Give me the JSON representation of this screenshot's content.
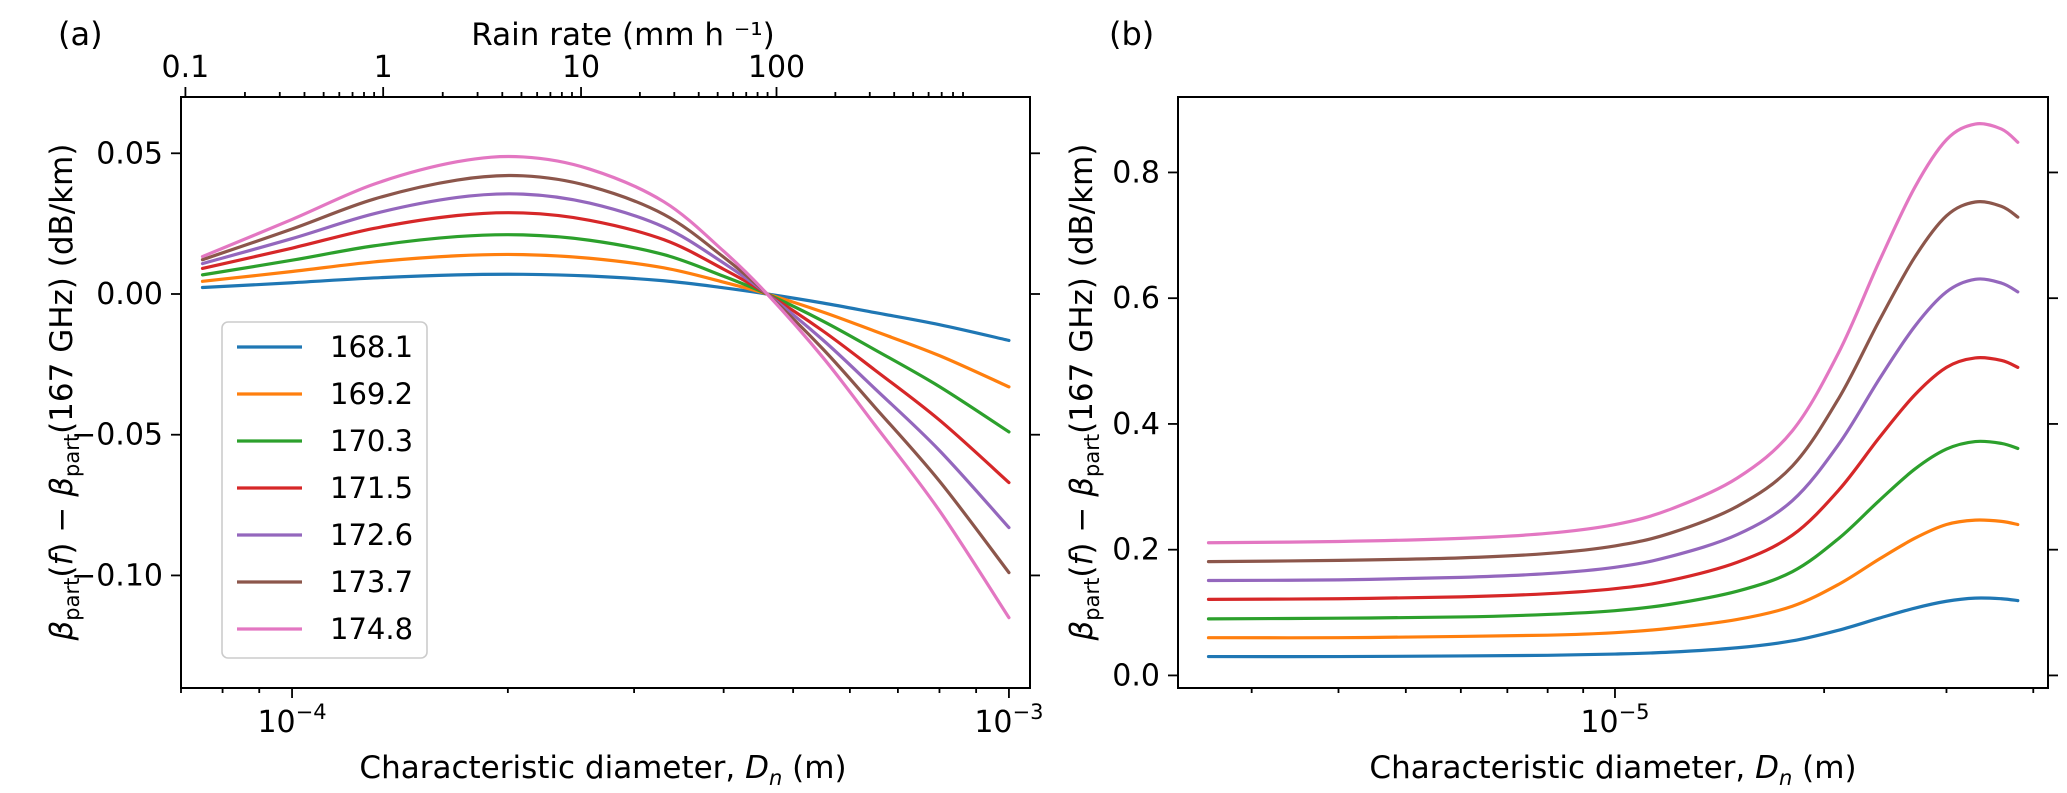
{
  "figure": {
    "colors": {
      "s1": "#1f77b4",
      "s2": "#ff7f0e",
      "s3": "#2ca02c",
      "s4": "#d62728",
      "s5": "#9467bd",
      "s6": "#8c564b",
      "s7": "#e377c2"
    }
  },
  "chart_data": [
    {
      "type": "line",
      "panel": "(a)",
      "title": "",
      "xlabel": "Characteristic diameter, D_n (m)",
      "xlabel_prefix": "Characteristic diameter, ",
      "xlabel_symbol": "D",
      "xlabel_sub": "n",
      "xlabel_suffix": " (m)",
      "ylabel": "β_part(f) − β_part(167 GHz)  (dB/km)",
      "ylabel_beta": "β",
      "ylabel_sub": "part",
      "ylabel_f": "f",
      "ylabel_mid": ") − ",
      "ylabel_tail": "(167 GHz)  (dB/km)",
      "x_scale": "log",
      "xlim": [
        7e-05,
        0.00107
      ],
      "ylim": [
        -0.14,
        0.07
      ],
      "x_ticks": [
        {
          "value": 0.0001,
          "base": "10",
          "exp": "−4"
        },
        {
          "value": 0.001,
          "base": "10",
          "exp": "−3"
        }
      ],
      "y_ticks": [
        {
          "value": 0.05,
          "label": "0.05"
        },
        {
          "value": 0.0,
          "label": "0.00"
        },
        {
          "value": -0.05,
          "label": "−0.05"
        },
        {
          "value": -0.1,
          "label": "−0.10"
        }
      ],
      "top_axis": {
        "label": "Rain rate (mm h ⁻¹)",
        "ticks": [
          {
            "value": 7.1e-05,
            "label": "0.1"
          },
          {
            "value": 0.000134,
            "label": "1"
          },
          {
            "value": 0.000253,
            "label": "10"
          },
          {
            "value": 0.000474,
            "label": "100"
          }
        ]
      },
      "legend_position": "lower-left",
      "x": [
        7.5e-05,
        0.0001,
        0.00013,
        0.00017,
        0.00021,
        0.00026,
        0.00033,
        0.0004,
        0.00046,
        0.00055,
        0.00065,
        0.0008,
        0.001
      ],
      "series": [
        {
          "name": "168.1",
          "values": [
            0.0023,
            0.004,
            0.0057,
            0.0068,
            0.007,
            0.0064,
            0.0047,
            0.0022,
            0.0,
            -0.0032,
            -0.0066,
            -0.0109,
            -0.0165
          ]
        },
        {
          "name": "169.2",
          "values": [
            0.0045,
            0.008,
            0.0114,
            0.0136,
            0.014,
            0.0127,
            0.0093,
            0.0042,
            0.0,
            -0.0064,
            -0.0132,
            -0.0219,
            -0.033
          ]
        },
        {
          "name": "170.3",
          "values": [
            0.0068,
            0.012,
            0.0171,
            0.0204,
            0.021,
            0.0191,
            0.014,
            0.0063,
            0.0,
            -0.0096,
            -0.0198,
            -0.0329,
            -0.049
          ]
        },
        {
          "name": "171.5",
          "values": [
            0.0091,
            0.0163,
            0.0233,
            0.0279,
            0.0288,
            0.0262,
            0.0193,
            0.0088,
            0.0,
            -0.0131,
            -0.027,
            -0.0448,
            -0.067
          ]
        },
        {
          "name": "172.6",
          "values": [
            0.0108,
            0.0197,
            0.0285,
            0.0343,
            0.0355,
            0.0323,
            0.0238,
            0.011,
            0.0,
            -0.0163,
            -0.0336,
            -0.0556,
            -0.083
          ]
        },
        {
          "name": "173.7",
          "values": [
            0.0122,
            0.0231,
            0.0337,
            0.0405,
            0.042,
            0.0383,
            0.0283,
            0.0131,
            0.0,
            -0.0195,
            -0.0402,
            -0.0665,
            -0.099
          ]
        },
        {
          "name": "174.8",
          "values": [
            0.0133,
            0.0265,
            0.039,
            0.047,
            0.0487,
            0.0444,
            0.0328,
            0.0152,
            0.0,
            -0.0225,
            -0.0465,
            -0.077,
            -0.115
          ]
        }
      ]
    },
    {
      "type": "line",
      "panel": "(b)",
      "title": "",
      "xlabel": "Characteristic diameter, D_n (m)",
      "xlabel_prefix": "Characteristic diameter, ",
      "xlabel_symbol": "D",
      "xlabel_sub": "n",
      "xlabel_suffix": " (m)",
      "ylabel": "β_part(f) − β_part(167 GHz)  (dB/km)",
      "ylabel_beta": "β",
      "ylabel_sub": "part",
      "ylabel_f": "f",
      "ylabel_mid": ") − ",
      "ylabel_tail": "(167 GHz)  (dB/km)",
      "x_scale": "log",
      "xlim": [
        2.35e-06,
        4.2e-05
      ],
      "ylim": [
        -0.02,
        0.92
      ],
      "x_ticks": [
        {
          "value": 1e-05,
          "base": "10",
          "exp": "−5"
        }
      ],
      "y_ticks": [
        {
          "value": 0.0,
          "label": "0.0"
        },
        {
          "value": 0.2,
          "label": "0.2"
        },
        {
          "value": 0.4,
          "label": "0.4"
        },
        {
          "value": 0.6,
          "label": "0.6"
        },
        {
          "value": 0.8,
          "label": "0.8"
        }
      ],
      "x": [
        2.6e-06,
        4e-06,
        6e-06,
        8e-06,
        1e-05,
        1.2e-05,
        1.5e-05,
        1.8e-05,
        2.1e-05,
        2.4e-05,
        2.7e-05,
        3e-05,
        3.3e-05,
        3.6e-05,
        3.8e-05
      ],
      "series": [
        {
          "name": "168.1",
          "values": [
            0.03,
            0.03,
            0.031,
            0.032,
            0.034,
            0.037,
            0.044,
            0.055,
            0.072,
            0.091,
            0.107,
            0.118,
            0.123,
            0.122,
            0.119
          ]
        },
        {
          "name": "169.2",
          "values": [
            0.06,
            0.06,
            0.062,
            0.064,
            0.068,
            0.075,
            0.089,
            0.11,
            0.145,
            0.185,
            0.218,
            0.24,
            0.247,
            0.245,
            0.24
          ]
        },
        {
          "name": "170.3",
          "values": [
            0.09,
            0.091,
            0.093,
            0.097,
            0.103,
            0.113,
            0.134,
            0.165,
            0.218,
            0.278,
            0.328,
            0.36,
            0.372,
            0.369,
            0.361
          ]
        },
        {
          "name": "171.5",
          "values": [
            0.121,
            0.122,
            0.125,
            0.13,
            0.138,
            0.151,
            0.18,
            0.223,
            0.295,
            0.378,
            0.446,
            0.49,
            0.505,
            0.501,
            0.49
          ]
        },
        {
          "name": "172.6",
          "values": [
            0.151,
            0.152,
            0.156,
            0.162,
            0.172,
            0.189,
            0.224,
            0.278,
            0.368,
            0.471,
            0.555,
            0.61,
            0.63,
            0.624,
            0.61
          ]
        },
        {
          "name": "173.7",
          "values": [
            0.181,
            0.183,
            0.187,
            0.194,
            0.206,
            0.226,
            0.269,
            0.333,
            0.441,
            0.564,
            0.665,
            0.731,
            0.753,
            0.746,
            0.729
          ]
        },
        {
          "name": "174.8",
          "values": [
            0.211,
            0.213,
            0.218,
            0.226,
            0.24,
            0.264,
            0.314,
            0.389,
            0.514,
            0.658,
            0.776,
            0.852,
            0.877,
            0.869,
            0.848
          ]
        }
      ]
    }
  ]
}
